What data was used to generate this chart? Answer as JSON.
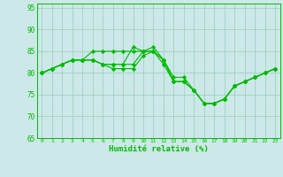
{
  "line1": [
    80,
    81,
    82,
    83,
    83,
    85,
    85,
    85,
    85,
    85,
    85,
    85,
    83,
    79,
    79,
    76,
    73,
    73,
    74,
    77,
    78,
    79,
    80,
    81
  ],
  "line2": [
    80,
    81,
    82,
    83,
    83,
    83,
    82,
    82,
    82,
    82,
    85,
    85,
    83,
    78,
    78,
    76,
    73,
    73,
    74,
    77,
    78,
    79,
    80,
    81
  ],
  "line3": [
    80,
    81,
    82,
    83,
    83,
    83,
    82,
    82,
    82,
    86,
    85,
    86,
    83,
    78,
    78,
    76,
    73,
    73,
    74,
    77,
    78,
    79,
    80,
    81
  ],
  "line4": [
    80,
    81,
    82,
    83,
    83,
    83,
    82,
    81,
    81,
    81,
    84,
    85,
    82,
    78,
    78,
    76,
    73,
    73,
    74,
    77,
    78,
    79,
    80,
    81
  ],
  "x": [
    0,
    1,
    2,
    3,
    4,
    5,
    6,
    7,
    8,
    9,
    10,
    11,
    12,
    13,
    14,
    15,
    16,
    17,
    18,
    19,
    20,
    21,
    22,
    23
  ],
  "xlabel": "Humidité relative (%)",
  "ylim": [
    65,
    96
  ],
  "yticks": [
    65,
    70,
    75,
    80,
    85,
    90,
    95
  ],
  "bg_color": "#cce8e8",
  "line_color": "#00bb00",
  "grid_color": "#99ccbb",
  "marker": "D",
  "marker_size": 2.2,
  "linewidth": 0.8
}
